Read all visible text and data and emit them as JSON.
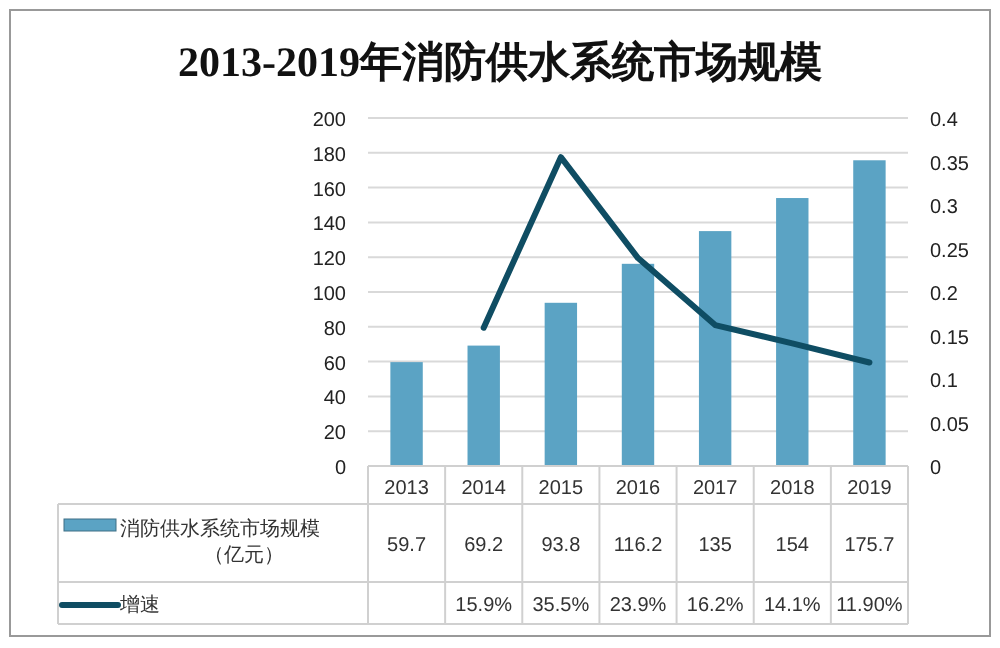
{
  "chart_data": {
    "type": "bar",
    "title": "2013-2019年消防供水系统市场规模",
    "categories": [
      "2013",
      "2014",
      "2015",
      "2016",
      "2017",
      "2018",
      "2019"
    ],
    "series": [
      {
        "name": "消防供水系统市场规模（亿元）",
        "color": "#5ba3c4",
        "values": [
          59.7,
          69.2,
          93.8,
          116.2,
          135,
          154,
          175.7
        ],
        "value_labels": [
          "59.7",
          "69.2",
          "93.8",
          "116.2",
          "135",
          "154",
          "175.7"
        ]
      },
      {
        "name": "增速",
        "type": "line",
        "axis": "y2",
        "color": "#0f4d63",
        "values": [
          null,
          0.159,
          0.355,
          0.239,
          0.162,
          0.141,
          0.119
        ],
        "value_labels": [
          null,
          "15.9%",
          "35.5%",
          "23.9%",
          "16.2%",
          "14.1%",
          "11.90%"
        ]
      }
    ],
    "ylim": [
      0,
      200
    ],
    "yticks": [
      0,
      20,
      40,
      60,
      80,
      100,
      120,
      140,
      160,
      180,
      200
    ],
    "y2lim": [
      0,
      0.4
    ],
    "y2ticks": [
      0,
      0.05,
      0.1,
      0.15,
      0.2,
      0.25,
      0.3,
      0.35,
      0.4
    ],
    "grid": "y",
    "legend": "bottom left"
  }
}
